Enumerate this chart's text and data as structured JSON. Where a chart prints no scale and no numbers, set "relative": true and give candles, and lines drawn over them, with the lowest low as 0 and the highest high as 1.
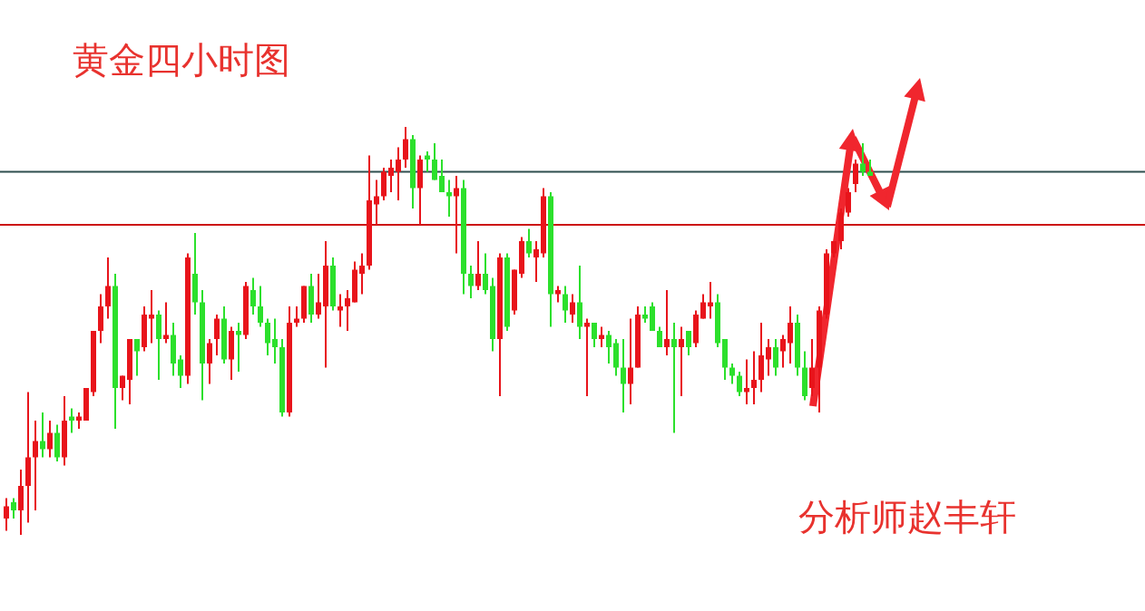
{
  "chart_data": {
    "type": "candlestick",
    "relative": true,
    "title": "黄金四小时图",
    "annotations": [
      "分析师赵丰轩"
    ],
    "categories": [
      null,
      null,
      null,
      null,
      null,
      null,
      null,
      null,
      null,
      null,
      null,
      null,
      null,
      null,
      null,
      null,
      null,
      null,
      null,
      null,
      null,
      null,
      null,
      null,
      null,
      null,
      null,
      null,
      null,
      null,
      null,
      null,
      null,
      null,
      null,
      null,
      null,
      null,
      null,
      null,
      null,
      null,
      null,
      null,
      null,
      null,
      null,
      null,
      null,
      null,
      null,
      null,
      null,
      null,
      null,
      null,
      null,
      null,
      null,
      null,
      null,
      null,
      null,
      null,
      null,
      null,
      null,
      null,
      null,
      null,
      null,
      null,
      null,
      null,
      null,
      null,
      null,
      null,
      null,
      null,
      null,
      null,
      null,
      null,
      null,
      null,
      null,
      null,
      null,
      null,
      null,
      null,
      null,
      null,
      null,
      null,
      null,
      null,
      null,
      null,
      null,
      null,
      null,
      null,
      null,
      null,
      null,
      null,
      null,
      null,
      null,
      null,
      null,
      null,
      null,
      null,
      null,
      null,
      null,
      null
    ],
    "ohlc": [
      [
        0.04,
        0.09,
        0.01,
        0.07
      ],
      [
        0.08,
        0.09,
        0.04,
        0.06
      ],
      [
        0.06,
        0.16,
        0,
        0.12
      ],
      [
        0.12,
        0.35,
        0.03,
        0.19
      ],
      [
        0.19,
        0.28,
        0.06,
        0.23
      ],
      [
        0.23,
        0.3,
        0.19,
        0.21
      ],
      [
        0.21,
        0.28,
        0.19,
        0.25
      ],
      [
        0.25,
        0.27,
        0.18,
        0.19
      ],
      [
        0.19,
        0.34,
        0.17,
        0.28
      ],
      [
        0.29,
        0.31,
        0.25,
        0.28
      ],
      [
        0.28,
        0.3,
        0.26,
        0.29
      ],
      [
        0.28,
        0.36,
        0.28,
        0.36
      ],
      [
        0.35,
        0.5,
        0.34,
        0.5
      ],
      [
        0.5,
        0.59,
        0.47,
        0.56
      ],
      [
        0.56,
        0.68,
        0.53,
        0.61
      ],
      [
        0.61,
        0.64,
        0.26,
        0.36
      ],
      [
        0.36,
        0.39,
        0.33,
        0.39
      ],
      [
        0.38,
        0.48,
        0.32,
        0.48
      ],
      [
        0.48,
        0.48,
        0.39,
        0.45
      ],
      [
        0.46,
        0.56,
        0.45,
        0.54
      ],
      [
        0.53,
        0.6,
        0.47,
        0.54
      ],
      [
        0.54,
        0.55,
        0.38,
        0.48
      ],
      [
        0.48,
        0.57,
        0.47,
        0.49
      ],
      [
        0.49,
        0.52,
        0.39,
        0.42
      ],
      [
        0.43,
        0.44,
        0.36,
        0.39
      ],
      [
        0.39,
        0.69,
        0.37,
        0.68
      ],
      [
        0.64,
        0.74,
        0.54,
        0.57
      ],
      [
        0.57,
        0.6,
        0.33,
        0.42
      ],
      [
        0.42,
        0.48,
        0.37,
        0.47
      ],
      [
        0.48,
        0.54,
        0.44,
        0.53
      ],
      [
        0.53,
        0.56,
        0.42,
        0.43
      ],
      [
        0.43,
        0.51,
        0.38,
        0.5
      ],
      [
        0.5,
        0.52,
        0.4,
        0.49
      ],
      [
        0.49,
        0.62,
        0.48,
        0.61
      ],
      [
        0.6,
        0.63,
        0.54,
        0.56
      ],
      [
        0.56,
        0.61,
        0.51,
        0.52
      ],
      [
        0.52,
        0.53,
        0.44,
        0.47
      ],
      [
        0.48,
        0.53,
        0.42,
        0.46
      ],
      [
        0.46,
        0.48,
        0.29,
        0.3
      ],
      [
        0.3,
        0.56,
        0.29,
        0.52
      ],
      [
        0.52,
        0.56,
        0.51,
        0.53
      ],
      [
        0.53,
        0.61,
        0.52,
        0.61
      ],
      [
        0.61,
        0.64,
        0.52,
        0.54
      ],
      [
        0.54,
        0.64,
        0.53,
        0.57
      ],
      [
        0.56,
        0.72,
        0.41,
        0.66
      ],
      [
        0.66,
        0.68,
        0.55,
        0.56
      ],
      [
        0.55,
        0.59,
        0.51,
        0.56
      ],
      [
        0.56,
        0.6,
        0.5,
        0.58
      ],
      [
        0.57,
        0.67,
        0.57,
        0.65
      ],
      [
        0.64,
        0.69,
        0.59,
        0.66
      ],
      [
        0.66,
        0.93,
        0.65,
        0.82
      ],
      [
        0.81,
        0.87,
        0.76,
        0.83
      ],
      [
        0.83,
        0.9,
        0.82,
        0.89
      ],
      [
        0.88,
        0.92,
        0.84,
        0.9
      ],
      [
        0.89,
        0.95,
        0.82,
        0.92
      ],
      [
        0.92,
        1.0,
        0.9,
        0.97
      ],
      [
        0.97,
        0.98,
        0.8,
        0.85
      ],
      [
        0.85,
        0.93,
        0.76,
        0.92
      ],
      [
        0.93,
        0.94,
        0.89,
        0.92
      ],
      [
        0.92,
        0.96,
        0.87,
        0.87
      ],
      [
        0.88,
        0.92,
        0.84,
        0.84
      ],
      [
        0.84,
        0.87,
        0.78,
        0.83
      ],
      [
        0.83,
        0.88,
        0.69,
        0.85
      ],
      [
        0.85,
        0.87,
        0.59,
        0.64
      ],
      [
        0.64,
        0.66,
        0.58,
        0.61
      ],
      [
        0.61,
        0.72,
        0.6,
        0.64
      ],
      [
        0.64,
        0.69,
        0.59,
        0.6
      ],
      [
        0.61,
        0.63,
        0.45,
        0.48
      ],
      [
        0.48,
        0.69,
        0.34,
        0.68
      ],
      [
        0.68,
        0.69,
        0.5,
        0.51
      ],
      [
        0.55,
        0.65,
        0.54,
        0.65
      ],
      [
        0.64,
        0.73,
        0.63,
        0.72
      ],
      [
        0.72,
        0.75,
        0.68,
        0.69
      ],
      [
        0.68,
        0.72,
        0.62,
        0.7
      ],
      [
        0.69,
        0.85,
        0.68,
        0.83
      ],
      [
        0.83,
        0.84,
        0.51,
        0.59
      ],
      [
        0.59,
        0.61,
        0.57,
        0.6
      ],
      [
        0.59,
        0.61,
        0.52,
        0.55
      ],
      [
        0.54,
        0.59,
        0.52,
        0.57
      ],
      [
        0.57,
        0.66,
        0.48,
        0.51
      ],
      [
        0.51,
        0.53,
        0.34,
        0.52
      ],
      [
        0.52,
        0.52,
        0.46,
        0.48
      ],
      [
        0.48,
        0.51,
        0.46,
        0.49
      ],
      [
        0.49,
        0.5,
        0.42,
        0.46
      ],
      [
        0.47,
        0.48,
        0.39,
        0.41
      ],
      [
        0.41,
        0.48,
        0.3,
        0.37
      ],
      [
        0.37,
        0.53,
        0.32,
        0.41
      ],
      [
        0.41,
        0.56,
        0.41,
        0.54
      ],
      [
        0.54,
        0.56,
        0.52,
        0.53
      ],
      [
        0.56,
        0.57,
        0.5,
        0.5
      ],
      [
        0.5,
        0.51,
        0.46,
        0.46
      ],
      [
        0.46,
        0.6,
        0.44,
        0.48
      ],
      [
        0.48,
        0.52,
        0.25,
        0.46
      ],
      [
        0.46,
        0.51,
        0.34,
        0.48
      ],
      [
        0.5,
        0.5,
        0.44,
        0.46
      ],
      [
        0.47,
        0.55,
        0.46,
        0.54
      ],
      [
        0.53,
        0.59,
        0.53,
        0.57
      ],
      [
        0.56,
        0.62,
        0.53,
        0.57
      ],
      [
        0.57,
        0.59,
        0.46,
        0.47
      ],
      [
        0.48,
        0.48,
        0.38,
        0.41
      ],
      [
        0.41,
        0.42,
        0.37,
        0.39
      ],
      [
        0.39,
        0.4,
        0.34,
        0.35
      ],
      [
        0.35,
        0.43,
        0.32,
        0.36
      ],
      [
        0.36,
        0.45,
        0.32,
        0.38
      ],
      [
        0.38,
        0.52,
        0.35,
        0.44
      ],
      [
        0.43,
        0.48,
        0.39,
        0.46
      ],
      [
        0.46,
        0.48,
        0.39,
        0.41
      ],
      [
        0.45,
        0.49,
        0.41,
        0.48
      ],
      [
        0.47,
        0.56,
        0.42,
        0.52
      ],
      [
        0.52,
        0.54,
        0.39,
        0.41
      ],
      [
        0.41,
        0.45,
        0.33,
        0.34
      ],
      [
        0.36,
        0.48,
        0.34,
        0.41
      ],
      [
        0.41,
        0.56,
        0.3,
        0.55
      ],
      [
        0.54,
        0.7,
        0.53,
        0.69
      ],
      [
        0.69,
        0.72,
        0.68,
        0.72
      ],
      [
        0.72,
        0.8,
        0.7,
        0.79
      ],
      [
        0.79,
        0.85,
        0.78,
        0.84
      ],
      [
        0.86,
        0.92,
        0.84,
        0.91
      ],
      [
        0.91,
        0.96,
        0.88,
        0.89
      ],
      [
        0.89,
        0.92,
        0.88,
        0.88
      ]
    ],
    "colors": [
      "#e8141b",
      "#2ce02c",
      "#e8141b",
      "#e8141b",
      "#e8141b",
      "#2ce02c",
      "#e8141b",
      "#2ce02c",
      "#e8141b",
      "#2ce02c",
      "#e8141b",
      "#e8141b",
      "#e8141b",
      "#e8141b",
      "#e8141b",
      "#2ce02c",
      "#e8141b",
      "#e8141b",
      "#2ce02c",
      "#e8141b",
      "#e8141b",
      "#2ce02c",
      "#e8141b",
      "#2ce02c",
      "#2ce02c",
      "#e8141b",
      "#2ce02c",
      "#2ce02c",
      "#e8141b",
      "#e8141b",
      "#2ce02c",
      "#e8141b",
      "#2ce02c",
      "#e8141b",
      "#2ce02c",
      "#2ce02c",
      "#2ce02c",
      "#2ce02c",
      "#2ce02c",
      "#e8141b",
      "#e8141b",
      "#e8141b",
      "#2ce02c",
      "#e8141b",
      "#e8141b",
      "#2ce02c",
      "#e8141b",
      "#e8141b",
      "#e8141b",
      "#e8141b",
      "#e8141b",
      "#e8141b",
      "#e8141b",
      "#e8141b",
      "#e8141b",
      "#e8141b",
      "#2ce02c",
      "#e8141b",
      "#2ce02c",
      "#2ce02c",
      "#2ce02c",
      "#2ce02c",
      "#e8141b",
      "#2ce02c",
      "#2ce02c",
      "#e8141b",
      "#2ce02c",
      "#2ce02c",
      "#e8141b",
      "#2ce02c",
      "#e8141b",
      "#e8141b",
      "#2ce02c",
      "#e8141b",
      "#e8141b",
      "#2ce02c",
      "#e8141b",
      "#2ce02c",
      "#e8141b",
      "#2ce02c",
      "#e8141b",
      "#2ce02c",
      "#e8141b",
      "#2ce02c",
      "#2ce02c",
      "#2ce02c",
      "#e8141b",
      "#e8141b",
      "#2ce02c",
      "#2ce02c",
      "#2ce02c",
      "#e8141b",
      "#2ce02c",
      "#e8141b",
      "#2ce02c",
      "#e8141b",
      "#e8141b",
      "#e8141b",
      "#2ce02c",
      "#2ce02c",
      "#2ce02c",
      "#2ce02c",
      "#e8141b",
      "#e8141b",
      "#e8141b",
      "#e8141b",
      "#2ce02c",
      "#e8141b",
      "#e8141b",
      "#2ce02c",
      "#2ce02c",
      "#e8141b",
      "#e8141b",
      "#e8141b",
      "#e8141b",
      "#e8141b",
      "#e8141b",
      "#e8141b",
      "#2ce02c",
      "#2ce02c"
    ],
    "ref_lines": [
      {
        "axis": "y",
        "value": 0.89,
        "color": "#2f4f4f"
      },
      {
        "axis": "y",
        "value": 0.76,
        "color": "#cc1111"
      }
    ]
  }
}
